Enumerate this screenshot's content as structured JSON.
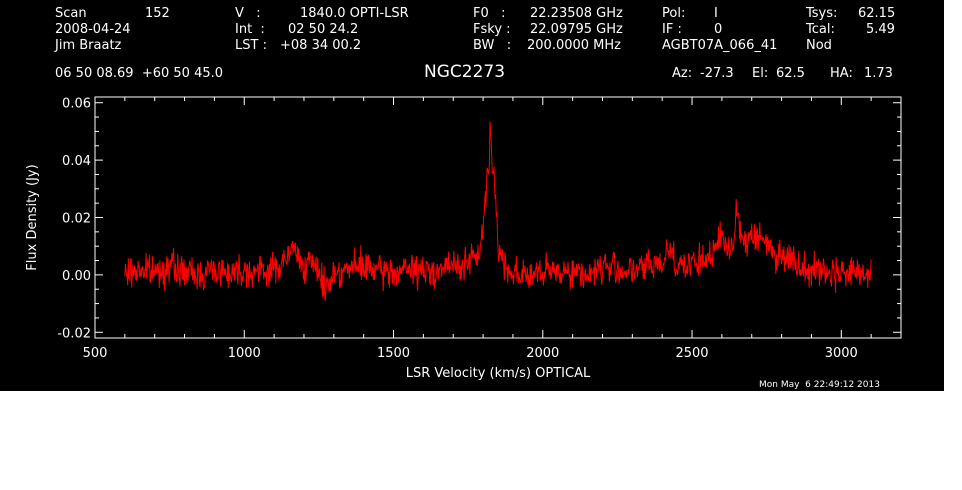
{
  "header": {
    "scan_label": "Scan",
    "scan_value": "152",
    "date": "2008-04-24",
    "observer": "Jim Braatz",
    "v_label": "V   :",
    "v_value": "1840.0 OPTI-LSR",
    "int_label": "Int  :",
    "int_value": "02 50 24.2",
    "lst_label": "LST :",
    "lst_value": "+08 34 00.2",
    "f0_label": "F0   :",
    "f0_value": "22.23508 GHz",
    "fsky_label": "Fsky :",
    "fsky_value": "22.09795 GHz",
    "bw_label": "BW   :",
    "bw_value": "200.0000 MHz",
    "pol_label": "Pol:",
    "pol_value": "I",
    "if_label": "IF :",
    "if_value": "0",
    "project": "AGBT07A_066_41",
    "tsys_label": "Tsys:",
    "tsys_value": "62.15",
    "tcal_label": "Tcal:",
    "tcal_value": "5.49",
    "mode": "Nod",
    "coords": "06 50 08.69  +60 50 45.0",
    "source": "NGC2273",
    "az_label": "Az:",
    "az_value": "-27.3",
    "el_label": "El:",
    "el_value": "62.5",
    "ha_label": "HA:",
    "ha_value": "1.73"
  },
  "timestamp": "Mon May  6 22:49:12 2013",
  "colors": {
    "background": "#000000",
    "axes": "#ffffff",
    "series": "#ff0000"
  },
  "chart_data": {
    "type": "line",
    "title": "NGC2273",
    "xlabel": "LSR Velocity (km/s) OPTICAL",
    "ylabel": "Flux Density (Jy)",
    "xlim": [
      500,
      3200
    ],
    "ylim": [
      -0.022,
      0.062
    ],
    "xticks": [
      500,
      1000,
      1500,
      2000,
      2500,
      3000
    ],
    "xtick_labels": [
      "500",
      "1000",
      "1500",
      "2000",
      "2500",
      "3000"
    ],
    "yticks": [
      -0.02,
      0.0,
      0.02,
      0.04,
      0.06
    ],
    "ytick_labels": [
      "-0.02",
      "0.00",
      "0.02",
      "0.04",
      "0.06"
    ],
    "grid": false,
    "series": [
      {
        "color": "#ff0000",
        "x": [
          600,
          650,
          700,
          750,
          800,
          850,
          900,
          950,
          1000,
          1050,
          1100,
          1150,
          1165,
          1180,
          1200,
          1250,
          1270,
          1300,
          1350,
          1400,
          1450,
          1500,
          1550,
          1600,
          1650,
          1700,
          1750,
          1780,
          1800,
          1810,
          1820,
          1825,
          1830,
          1835,
          1840,
          1850,
          1860,
          1870,
          1880,
          1900,
          1950,
          2000,
          2050,
          2100,
          2150,
          2200,
          2250,
          2300,
          2350,
          2400,
          2420,
          2450,
          2500,
          2550,
          2580,
          2600,
          2620,
          2640,
          2650,
          2660,
          2680,
          2700,
          2720,
          2750,
          2780,
          2800,
          2850,
          2900,
          2950,
          3000,
          3050,
          3100
        ],
        "y": [
          0.0,
          0.002,
          0.001,
          0.003,
          0.001,
          0.0,
          0.002,
          0.001,
          0.002,
          0.001,
          0.002,
          0.006,
          0.01,
          0.006,
          0.004,
          0.002,
          -0.005,
          0.001,
          0.002,
          0.003,
          0.001,
          0.001,
          0.002,
          0.001,
          0.002,
          0.003,
          0.004,
          0.006,
          0.015,
          0.03,
          0.037,
          0.055,
          0.035,
          0.038,
          0.03,
          0.012,
          0.006,
          0.004,
          0.003,
          0.001,
          0.0,
          0.0,
          0.002,
          0.001,
          0.0,
          0.003,
          0.002,
          0.001,
          0.003,
          0.004,
          0.01,
          0.004,
          0.003,
          0.006,
          0.009,
          0.014,
          0.008,
          0.012,
          0.026,
          0.016,
          0.01,
          0.016,
          0.012,
          0.012,
          0.006,
          0.008,
          0.004,
          0.002,
          0.001,
          0.001,
          0.001,
          0.0
        ]
      }
    ]
  }
}
